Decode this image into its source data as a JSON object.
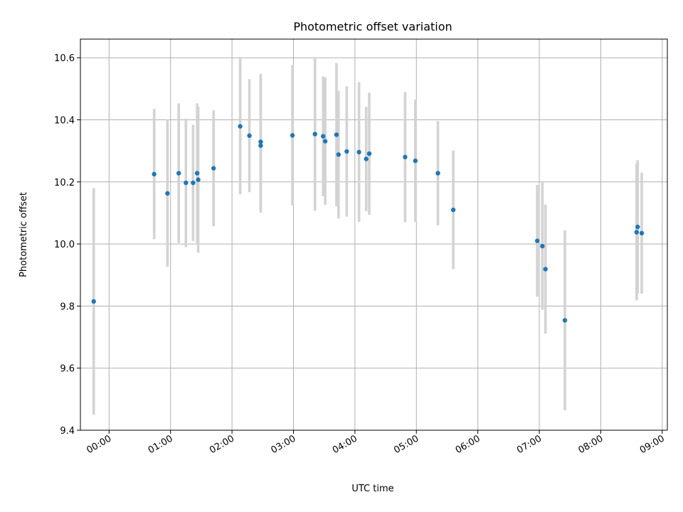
{
  "chart_data": {
    "type": "scatter",
    "title": "Photometric offset variation",
    "xlabel": "UTC time",
    "ylabel": "Photometric offset",
    "x_unit": "UTC time (HH:MM)",
    "xlim": [
      "-00:28",
      "09:05"
    ],
    "ylim": [
      9.4,
      10.66
    ],
    "x_ticks": [
      "00:00",
      "01:00",
      "02:00",
      "03:00",
      "04:00",
      "05:00",
      "06:00",
      "07:00",
      "08:00",
      "09:00"
    ],
    "y_ticks": [
      9.4,
      9.6,
      9.8,
      10.0,
      10.2,
      10.4,
      10.6
    ],
    "y_tick_labels": [
      "9.4",
      "9.6",
      "9.8",
      "10.0",
      "10.2",
      "10.4",
      "10.6"
    ],
    "grid": true,
    "colors": {
      "point": "#1f77b4",
      "errorbar": "#d3d3d3"
    },
    "points": [
      {
        "t": "-00:15",
        "y": 9.815,
        "err": 0.365
      },
      {
        "t": "00:44",
        "y": 10.225,
        "err": 0.21
      },
      {
        "t": "00:57",
        "y": 10.163,
        "err": 0.237
      },
      {
        "t": "01:08",
        "y": 10.228,
        "err": 0.225
      },
      {
        "t": "01:15",
        "y": 10.197,
        "err": 0.207
      },
      {
        "t": "01:22",
        "y": 10.197,
        "err": 0.187
      },
      {
        "t": "01:26",
        "y": 10.228,
        "err": 0.225
      },
      {
        "t": "01:27",
        "y": 10.207,
        "err": 0.235
      },
      {
        "t": "01:42",
        "y": 10.244,
        "err": 0.187
      },
      {
        "t": "02:08",
        "y": 10.379,
        "err": 0.219
      },
      {
        "t": "02:17",
        "y": 10.349,
        "err": 0.182
      },
      {
        "t": "02:28",
        "y": 10.329,
        "err": 0.219
      },
      {
        "t": "02:28",
        "y": 10.317,
        "err": 0.216
      },
      {
        "t": "02:59",
        "y": 10.35,
        "err": 0.226
      },
      {
        "t": "03:21",
        "y": 10.354,
        "err": 0.247
      },
      {
        "t": "03:29",
        "y": 10.347,
        "err": 0.193
      },
      {
        "t": "03:31",
        "y": 10.331,
        "err": 0.205
      },
      {
        "t": "03:42",
        "y": 10.352,
        "err": 0.231
      },
      {
        "t": "03:44",
        "y": 10.288,
        "err": 0.206
      },
      {
        "t": "03:52",
        "y": 10.298,
        "err": 0.21
      },
      {
        "t": "04:04",
        "y": 10.296,
        "err": 0.225
      },
      {
        "t": "04:11",
        "y": 10.274,
        "err": 0.168
      },
      {
        "t": "04:14",
        "y": 10.291,
        "err": 0.197
      },
      {
        "t": "04:49",
        "y": 10.28,
        "err": 0.21
      },
      {
        "t": "04:59",
        "y": 10.268,
        "err": 0.197
      },
      {
        "t": "05:21",
        "y": 10.228,
        "err": 0.168
      },
      {
        "t": "05:36",
        "y": 10.11,
        "err": 0.191
      },
      {
        "t": "06:58",
        "y": 10.01,
        "err": 0.18
      },
      {
        "t": "07:03",
        "y": 9.993,
        "err": 0.205
      },
      {
        "t": "07:06",
        "y": 9.919,
        "err": 0.208
      },
      {
        "t": "07:25",
        "y": 9.754,
        "err": 0.29
      },
      {
        "t": "08:35",
        "y": 10.038,
        "err": 0.22
      },
      {
        "t": "08:36",
        "y": 10.055,
        "err": 0.215
      },
      {
        "t": "08:40",
        "y": 10.035,
        "err": 0.195
      }
    ]
  }
}
